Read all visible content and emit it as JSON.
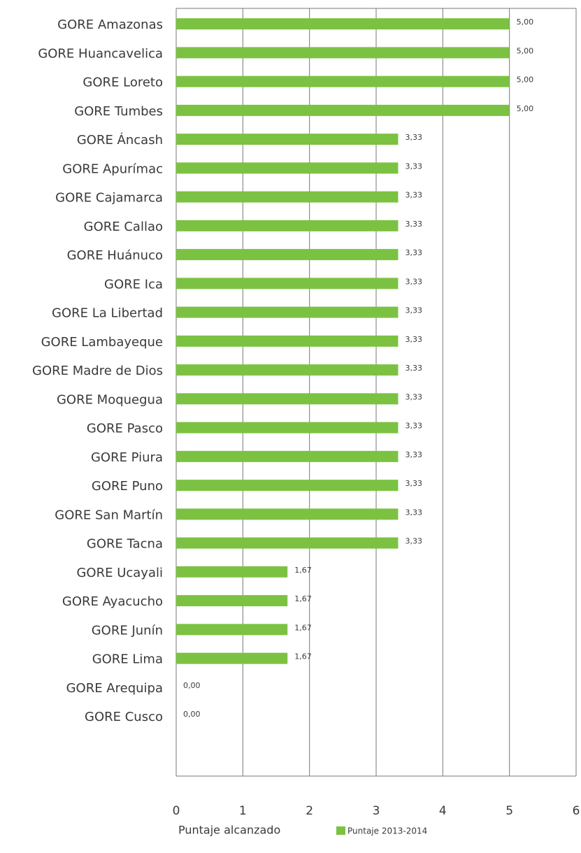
{
  "chart_data": {
    "type": "bar",
    "orientation": "horizontal",
    "x_label": "Puntaje alcanzado",
    "categories": [
      "GORE Amazonas",
      "GORE Huancavelica",
      "GORE Loreto",
      "GORE Tumbes",
      "GORE Áncash",
      "GORE Apurímac",
      "GORE Cajamarca",
      "GORE Callao",
      "GORE Huánuco",
      "GORE Ica",
      "GORE La Libertad",
      "GORE Lambayeque",
      "GORE Madre de Dios",
      "GORE Moquegua",
      "GORE Pasco",
      "GORE Piura",
      "GORE Puno",
      "GORE San Martín",
      "GORE Tacna",
      "GORE Ucayali",
      "GORE Ayacucho",
      "GORE Junín",
      "GORE Lima",
      "GORE Arequipa",
      "GORE Cusco"
    ],
    "series": [
      {
        "name": "Puntaje 2013-2014",
        "color": "#7cc242",
        "values": [
          5,
          5,
          5,
          5,
          3.33,
          3.33,
          3.33,
          3.33,
          3.33,
          3.33,
          3.33,
          3.33,
          3.33,
          3.33,
          3.33,
          3.33,
          3.33,
          3.33,
          3.33,
          1.67,
          1.67,
          1.67,
          1.67,
          0,
          0
        ],
        "value_labels": [
          "5,00",
          "5,00",
          "5,00",
          "5,00",
          "3,33",
          "3,33",
          "3,33",
          "3,33",
          "3,33",
          "3,33",
          "3,33",
          "3,33",
          "3,33",
          "3,33",
          "3,33",
          "3,33",
          "3,33",
          "3,33",
          "3,33",
          "1,67",
          "1,67",
          "1,67",
          "1,67",
          "0,00",
          "0,00"
        ]
      }
    ],
    "xlim": [
      0,
      6
    ],
    "xticks": [
      0,
      1,
      2,
      3,
      4,
      5,
      6
    ],
    "grid": true,
    "legend": "bottom"
  }
}
